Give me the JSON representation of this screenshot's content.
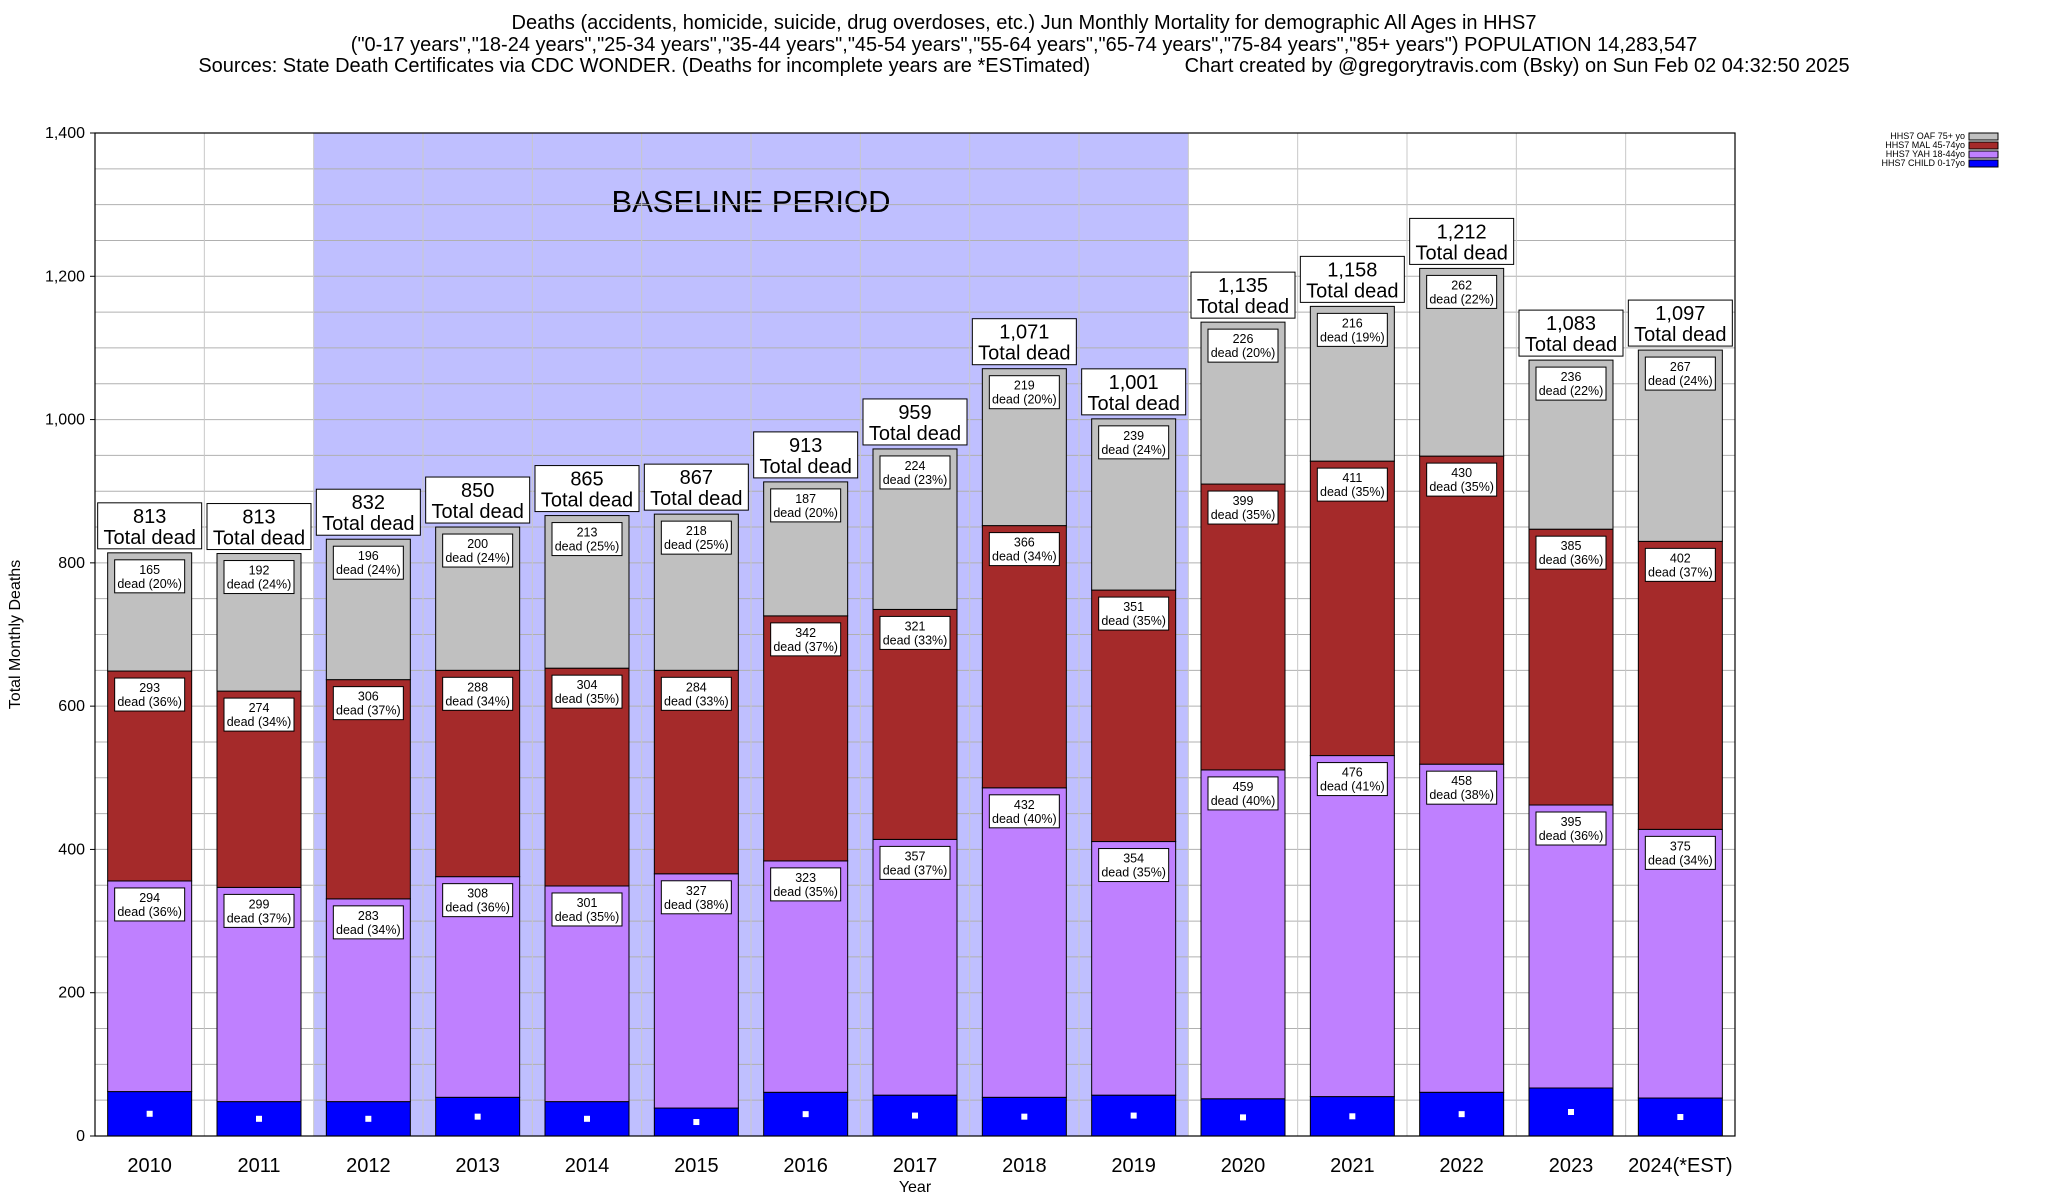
{
  "header": {
    "line1": "Deaths (accidents, homicide, suicide, drug overdoses, etc.) Jun Monthly Mortality for demographic All Ages in HHS7",
    "line2": "(\"0-17 years\",\"18-24 years\",\"25-34 years\",\"35-44 years\",\"45-54 years\",\"55-64 years\",\"65-74 years\",\"75-84 years\",\"85+ years\") POPULATION 14,283,547",
    "line3": "Sources: State Death Certificates via CDC WONDER. (Deaths for incomplete years are *ESTimated)                 Chart created by @gregorytravis.com (Bsky) on Sun Feb 02 04:32:50 2025"
  },
  "chart_data": {
    "type": "bar",
    "stacked": true,
    "title": "Deaths (accidents, homicide, suicide, drug overdoses, etc.) Jun Monthly Mortality for demographic All Ages in HHS7",
    "xlabel": "Year",
    "ylabel": "Total Monthly Deaths",
    "ylim": [
      0,
      1400
    ],
    "yticks": [
      "0",
      "200",
      "400",
      "600",
      "800",
      "1,000",
      "1,200",
      "1,400"
    ],
    "grid": true,
    "legend_position": "top-right",
    "categories": [
      "2010",
      "2011",
      "2012",
      "2013",
      "2014",
      "2015",
      "2016",
      "2017",
      "2018",
      "2019",
      "2020",
      "2021",
      "2022",
      "2023",
      "2024(*EST)"
    ],
    "series": [
      {
        "name": "HHS7 CHILD 0-17yo",
        "color": "#0000ff",
        "values": [
          62,
          48,
          48,
          54,
          48,
          39,
          61,
          57,
          54,
          57,
          52,
          55,
          61,
          67,
          53
        ]
      },
      {
        "name": "HHS7 YAH 18-44yo",
        "color": "#bf80ff",
        "values": [
          294,
          299,
          283,
          308,
          301,
          327,
          323,
          357,
          432,
          354,
          459,
          476,
          458,
          395,
          375
        ],
        "labels": [
          "294\ndead (36%)",
          "299\ndead (37%)",
          "283\ndead (34%)",
          "308\ndead (36%)",
          "301\ndead (35%)",
          "327\ndead (38%)",
          "323\ndead (35%)",
          "357\ndead (37%)",
          "432\ndead (40%)",
          "354\ndead (35%)",
          "459\ndead (40%)",
          "476\ndead (41%)",
          "458\ndead (38%)",
          "395\ndead (36%)",
          "375\ndead (34%)"
        ]
      },
      {
        "name": "HHS7 MAL 45-74yo",
        "color": "#a52a2a",
        "values": [
          293,
          274,
          306,
          288,
          304,
          284,
          342,
          321,
          366,
          351,
          399,
          411,
          430,
          385,
          402
        ],
        "labels": [
          "293\ndead (36%)",
          "274\ndead (34%)",
          "306\ndead (37%)",
          "288\ndead (34%)",
          "304\ndead (35%)",
          "284\ndead (33%)",
          "342\ndead (37%)",
          "321\ndead (33%)",
          "366\ndead (34%)",
          "351\ndead (35%)",
          "399\ndead (35%)",
          "411\ndead (35%)",
          "430\ndead (35%)",
          "385\ndead (36%)",
          "402\ndead (37%)"
        ]
      },
      {
        "name": "HHS7 OAF 75+ yo",
        "color": "#c0c0c0",
        "values": [
          165,
          192,
          196,
          200,
          213,
          218,
          187,
          224,
          219,
          239,
          226,
          216,
          262,
          236,
          267
        ],
        "labels": [
          "165\ndead (20%)",
          "192\ndead (24%)",
          "196\ndead (24%)",
          "200\ndead (24%)",
          "213\ndead (25%)",
          "218\ndead (25%)",
          "187\ndead (20%)",
          "224\ndead (23%)",
          "219\ndead (20%)",
          "239\ndead (24%)",
          "226\ndead (20%)",
          "216\ndead (19%)",
          "262\ndead (22%)",
          "236\ndead (22%)",
          "267\ndead (24%)"
        ]
      }
    ],
    "totals": [
      "813",
      "813",
      "832",
      "850",
      "865",
      "867",
      "913",
      "959",
      "1,071",
      "1,001",
      "1,135",
      "1,158",
      "1,212",
      "1,083",
      "1,097"
    ],
    "total_suffix": "Total dead",
    "annotation": {
      "label": "BASELINE PERIOD",
      "from": "2012",
      "to": "2019",
      "color": "#bfbfff"
    }
  }
}
